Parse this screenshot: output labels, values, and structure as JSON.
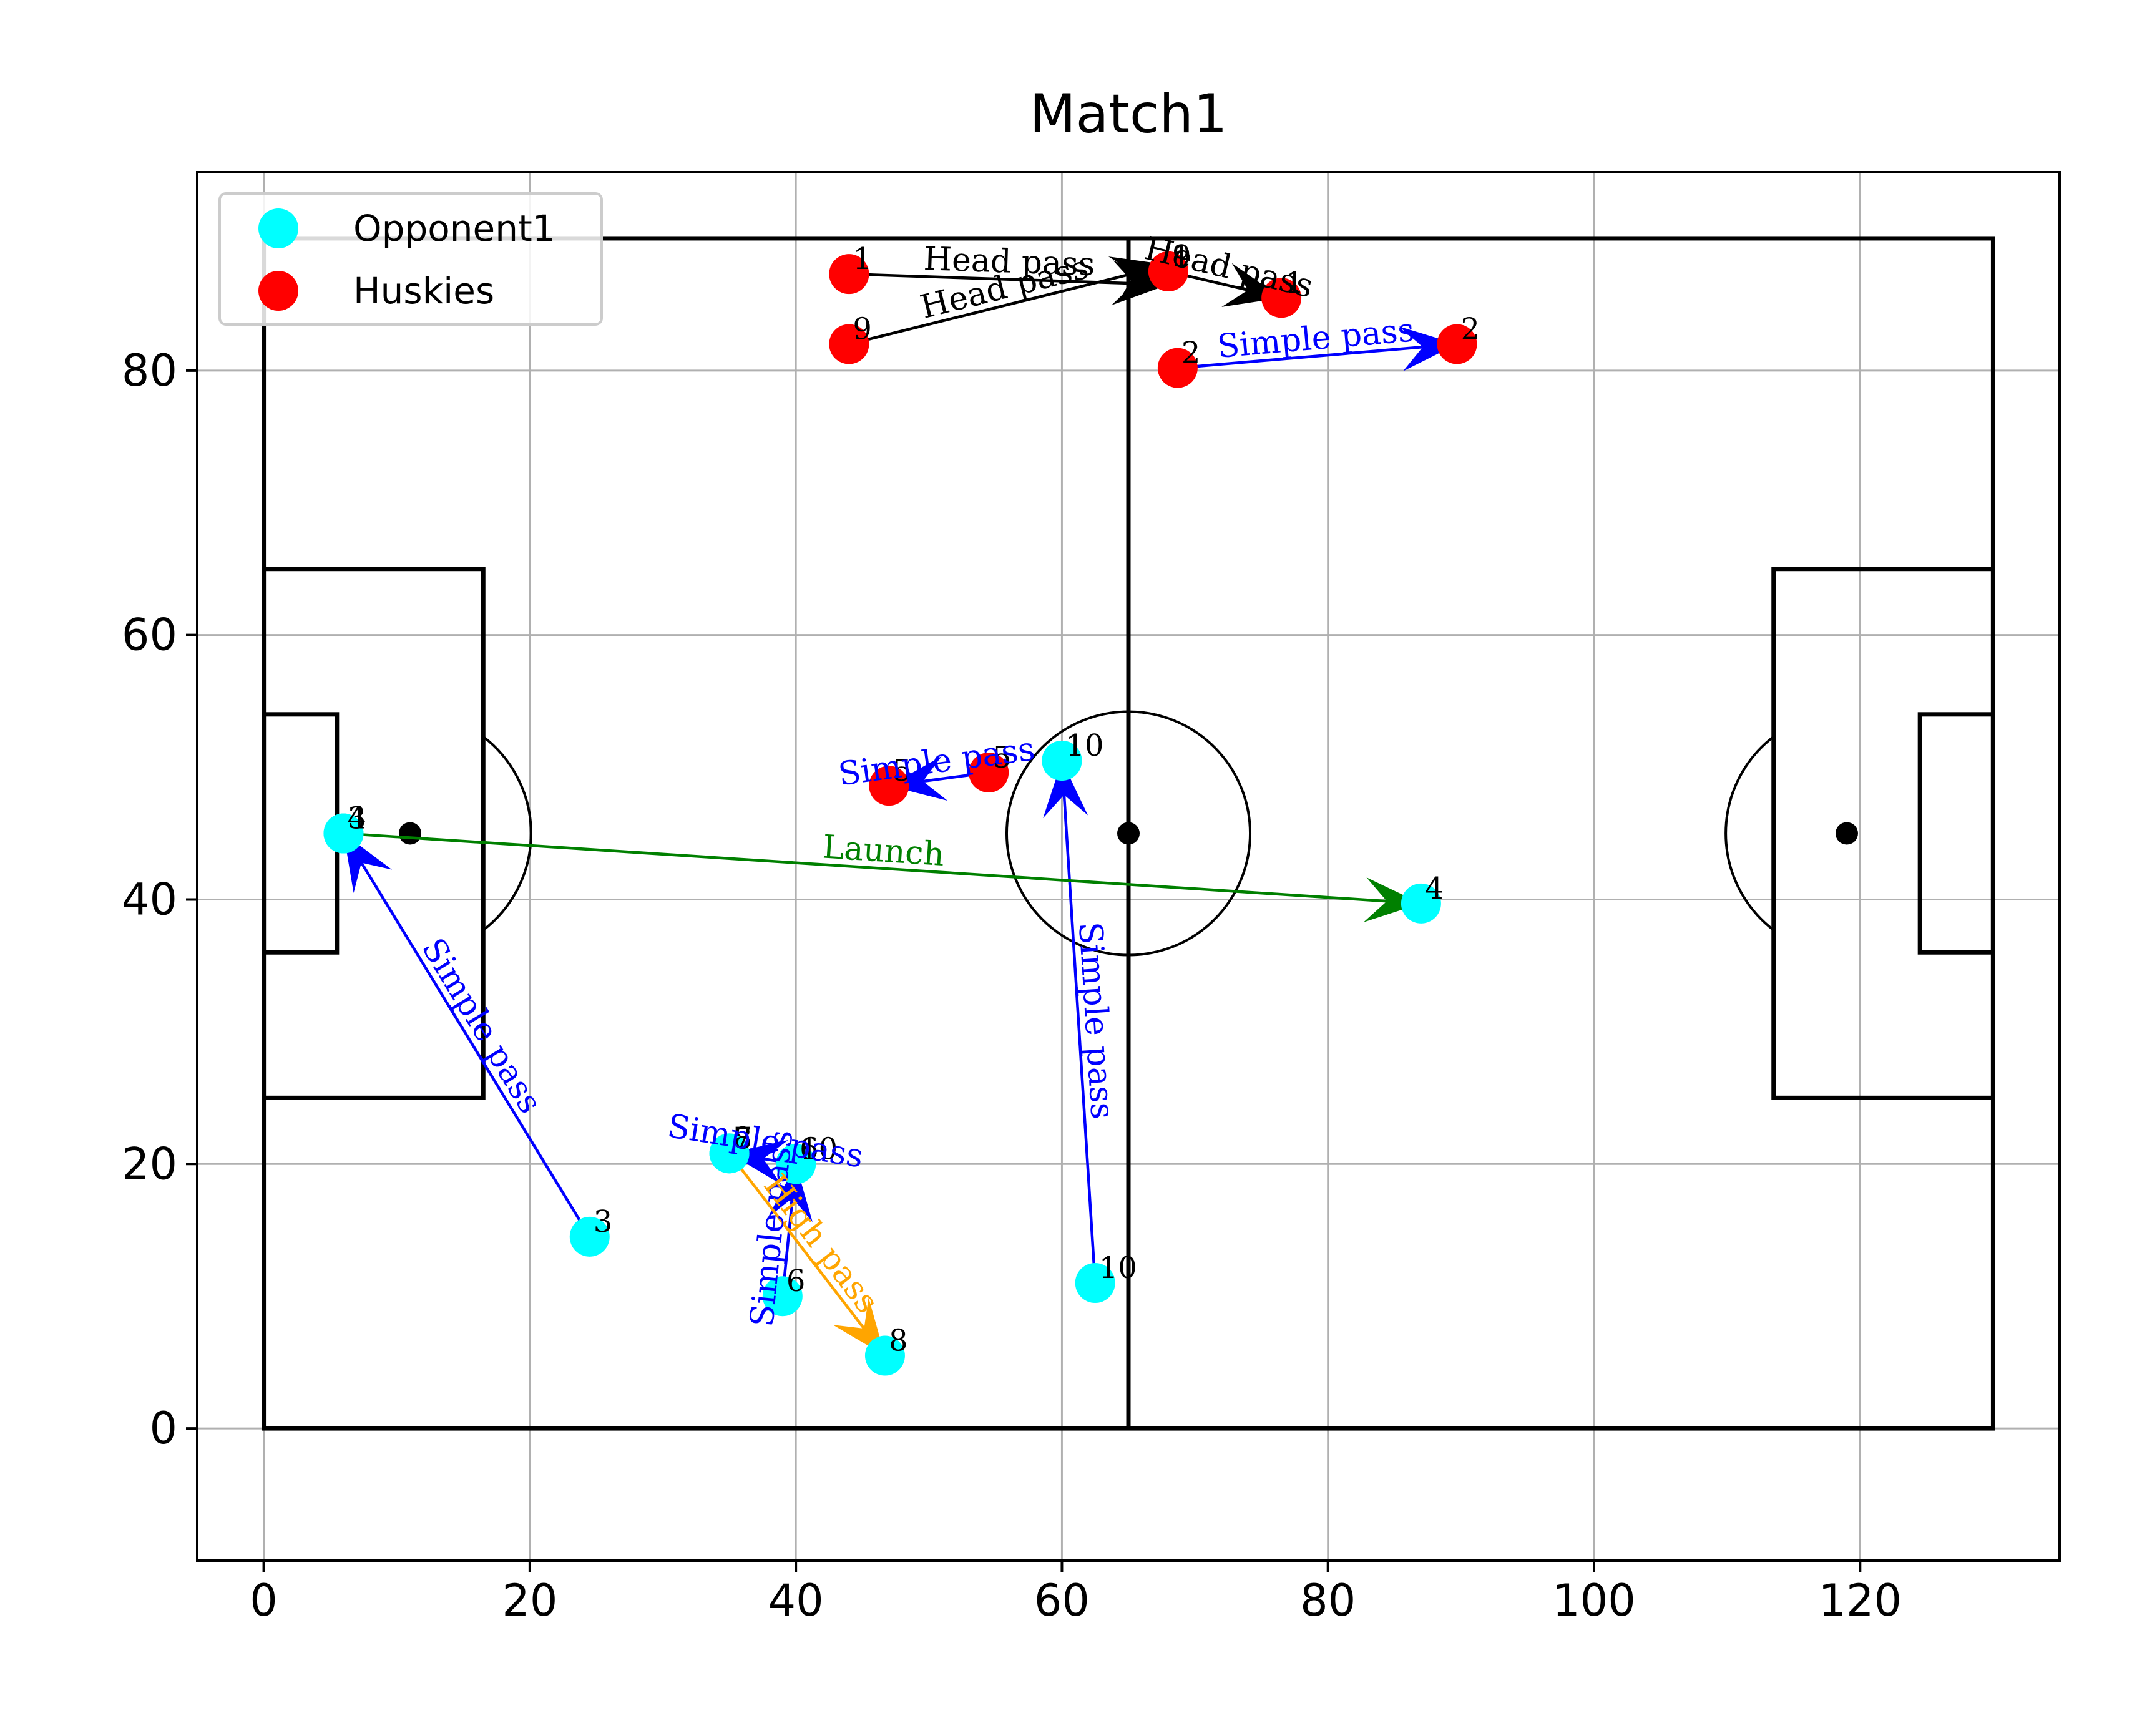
{
  "chart_data": {
    "type": "scatter",
    "title": "Match1",
    "xlabel": "",
    "ylabel": "",
    "xlim": [
      -5,
      135
    ],
    "ylim": [
      -10,
      95
    ],
    "xticks": [
      0,
      20,
      40,
      60,
      80,
      100,
      120
    ],
    "yticks": [
      0,
      20,
      40,
      60,
      80
    ],
    "grid": true,
    "legend_position": "top-left",
    "pitch": {
      "length": 130,
      "width": 90,
      "halfway_x": 65,
      "centre_spot": [
        65,
        45
      ],
      "centre_circle_radius": 9.15,
      "left_penalty_box": [
        0,
        25,
        16.5,
        65
      ],
      "right_penalty_box": [
        113.5,
        25,
        130,
        65
      ],
      "left_six_yard_box": [
        0,
        36,
        5.5,
        54
      ],
      "right_six_yard_box": [
        124.5,
        36,
        130,
        54
      ],
      "left_penalty_spot": [
        11,
        45
      ],
      "right_penalty_spot": [
        119,
        45
      ],
      "line_color": "#000000"
    },
    "series": [
      {
        "name": "Opponent1",
        "color": "#00ffff",
        "points": [
          {
            "x": 6,
            "y": 45,
            "label": "4"
          },
          {
            "x": 6,
            "y": 45,
            "label": "3"
          },
          {
            "x": 24.5,
            "y": 14.5,
            "label": "3"
          },
          {
            "x": 35,
            "y": 20.8,
            "label": "7"
          },
          {
            "x": 35,
            "y": 20.8,
            "label": "8"
          },
          {
            "x": 40,
            "y": 20,
            "label": "6"
          },
          {
            "x": 40,
            "y": 20,
            "label": "10"
          },
          {
            "x": 39,
            "y": 10,
            "label": "6"
          },
          {
            "x": 46.7,
            "y": 5.5,
            "label": "8"
          },
          {
            "x": 60,
            "y": 50.5,
            "label": "10"
          },
          {
            "x": 60,
            "y": 50.5,
            "label": "1"
          },
          {
            "x": 62.5,
            "y": 11,
            "label": "10"
          },
          {
            "x": 87,
            "y": 39.7,
            "label": "4"
          }
        ]
      },
      {
        "name": "Huskies",
        "color": "#ff0000",
        "points": [
          {
            "x": 44,
            "y": 87.3,
            "label": "1"
          },
          {
            "x": 44,
            "y": 82,
            "label": "9"
          },
          {
            "x": 68,
            "y": 87.5,
            "label": "1"
          },
          {
            "x": 68,
            "y": 87.5,
            "label": "9"
          },
          {
            "x": 76.5,
            "y": 85.5,
            "label": "1"
          },
          {
            "x": 68.7,
            "y": 80.2,
            "label": "2"
          },
          {
            "x": 89.7,
            "y": 82,
            "label": "2"
          },
          {
            "x": 47,
            "y": 48.6,
            "label": "5"
          },
          {
            "x": 54.5,
            "y": 49.6,
            "label": "5"
          }
        ]
      }
    ],
    "passes": [
      {
        "x1": 44,
        "y1": 87.3,
        "x2": 68,
        "y2": 86.5,
        "color": "#000000",
        "label": "Head pass"
      },
      {
        "x1": 44,
        "y1": 82,
        "x2": 68,
        "y2": 88,
        "color": "#000000",
        "label": "Head pass"
      },
      {
        "x1": 68,
        "y1": 87.5,
        "x2": 76.5,
        "y2": 85.5,
        "color": "#000000",
        "label": "Head pass"
      },
      {
        "x1": 68.7,
        "y1": 80.2,
        "x2": 89.7,
        "y2": 82,
        "color": "#0000ff",
        "label": "Simple pass"
      },
      {
        "x1": 54.5,
        "y1": 49.6,
        "x2": 47,
        "y2": 48.6,
        "color": "#0000ff",
        "label": "Simple pass"
      },
      {
        "x1": 62.5,
        "y1": 11,
        "x2": 60,
        "y2": 50.5,
        "color": "#0000ff",
        "label": "Simple pass"
      },
      {
        "x1": 6,
        "y1": 45,
        "x2": 87,
        "y2": 39.7,
        "color": "#008000",
        "label": "Launch"
      },
      {
        "x1": 24.5,
        "y1": 14.5,
        "x2": 6,
        "y2": 45,
        "color": "#0000ff",
        "label": "Simple pass"
      },
      {
        "x1": 40,
        "y1": 20,
        "x2": 35,
        "y2": 20.8,
        "color": "#0000ff",
        "label": "Simple pass"
      },
      {
        "x1": 39,
        "y1": 10,
        "x2": 40,
        "y2": 20,
        "color": "#0000ff",
        "label": "Simple pass"
      },
      {
        "x1": 35,
        "y1": 20.8,
        "x2": 46.7,
        "y2": 5.5,
        "color": "#ffa500",
        "label": "High pass"
      }
    ]
  }
}
